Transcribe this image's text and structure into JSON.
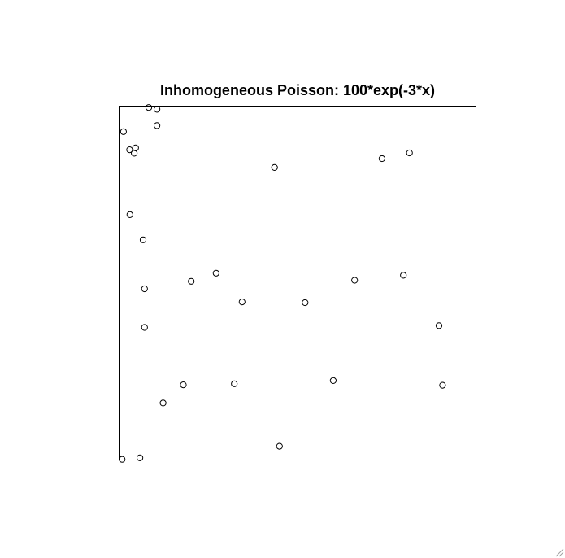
{
  "chart_data": {
    "type": "scatter",
    "title": "Inhomogeneous Poisson: 100*exp(-3*x)",
    "xlabel": "",
    "ylabel": "",
    "xlim": [
      0,
      1
    ],
    "ylim": [
      0,
      1
    ],
    "axes_shown": false,
    "grid": false,
    "marker": "open-circle",
    "points": [
      {
        "x": 0.005,
        "y": 0.003
      },
      {
        "x": 0.055,
        "y": 0.007
      },
      {
        "x": 0.12,
        "y": 0.162
      },
      {
        "x": 0.177,
        "y": 0.213
      },
      {
        "x": 0.32,
        "y": 0.216
      },
      {
        "x": 0.447,
        "y": 0.04
      },
      {
        "x": 0.598,
        "y": 0.225
      },
      {
        "x": 0.905,
        "y": 0.212
      },
      {
        "x": 0.895,
        "y": 0.38
      },
      {
        "x": 0.068,
        "y": 0.375
      },
      {
        "x": 0.068,
        "y": 0.484
      },
      {
        "x": 0.199,
        "y": 0.505
      },
      {
        "x": 0.269,
        "y": 0.528
      },
      {
        "x": 0.342,
        "y": 0.447
      },
      {
        "x": 0.519,
        "y": 0.445
      },
      {
        "x": 0.658,
        "y": 0.508
      },
      {
        "x": 0.795,
        "y": 0.522
      },
      {
        "x": 0.064,
        "y": 0.622
      },
      {
        "x": 0.027,
        "y": 0.693
      },
      {
        "x": 0.043,
        "y": 0.881
      },
      {
        "x": 0.026,
        "y": 0.876
      },
      {
        "x": 0.039,
        "y": 0.866
      },
      {
        "x": 0.009,
        "y": 0.927
      },
      {
        "x": 0.103,
        "y": 0.944
      },
      {
        "x": 0.08,
        "y": 0.995
      },
      {
        "x": 0.103,
        "y": 0.99
      },
      {
        "x": 0.433,
        "y": 0.826
      },
      {
        "x": 0.735,
        "y": 0.851
      },
      {
        "x": 0.812,
        "y": 0.867
      }
    ]
  }
}
